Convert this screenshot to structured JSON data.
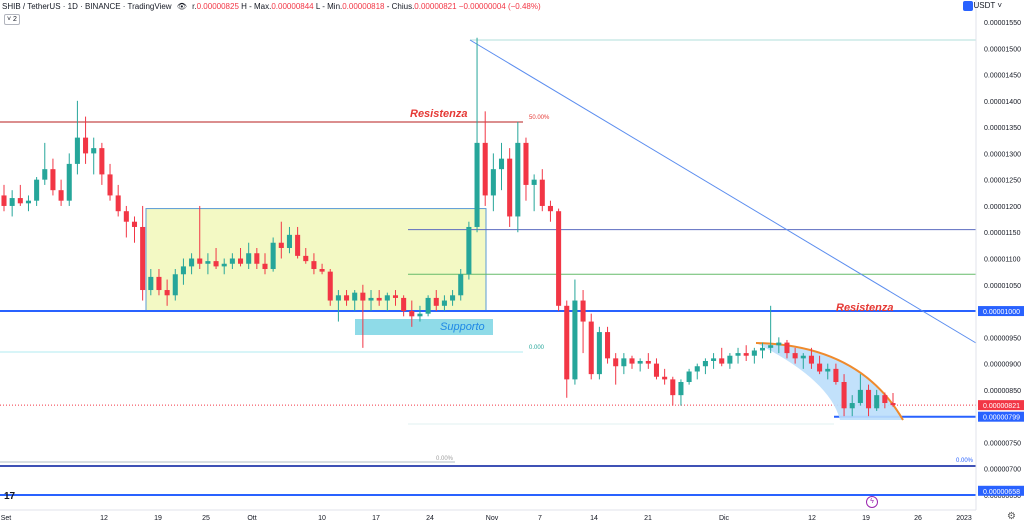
{
  "header": {
    "symbol": "SHIB / TetherUS · 1D · BINANCE · TradingView",
    "ohlc_open_label": "r.",
    "ohlc_open": "0.00000825",
    "ohlc_high_label": "H - Max.",
    "ohlc_high": "0.00000844",
    "ohlc_low_label": "L - Min.",
    "ohlc_low": "0.00000818",
    "ohlc_close_label": "- Chius.",
    "ohlc_close": "0.00000821",
    "ohlc_change": "−0.00000004 (−0.48%)",
    "indicator_count": "2"
  },
  "currency": "USDT",
  "icons": {
    "logo": "tradingview-logo-icon",
    "settings": "gear-icon",
    "flash": "flash-icon",
    "eye": "eye-icon",
    "currency": "currency-icon"
  },
  "chart_data": {
    "type": "candlestick",
    "x_tick_labels": [
      "Set",
      "12",
      "19",
      "25",
      "Ott",
      "10",
      "17",
      "24",
      "Nov",
      "7",
      "14",
      "21",
      "Dic",
      "12",
      "19",
      "26",
      "2023"
    ],
    "y_tick_labels": [
      "0.00001550",
      "0.00001500",
      "0.00001450",
      "0.00001400",
      "0.00001350",
      "0.00001300",
      "0.00001250",
      "0.00001200",
      "0.00001150",
      "0.00001100",
      "0.00001050",
      "0.00001000",
      "0.00000950",
      "0.00000900",
      "0.00000850",
      "0.00000800",
      "0.00000750",
      "0.00000700",
      "0.00000650"
    ],
    "ylim": [
      6.2e-06,
      1.59e-05
    ],
    "price_markers": [
      {
        "value": 8.21e-06,
        "label": "0.00000821",
        "color": "#f23645"
      },
      {
        "value": 7.99e-06,
        "label": "0.00000799",
        "color": "#2962ff"
      },
      {
        "value": 1e-05,
        "label": "0.00001000",
        "color": "#2962ff"
      },
      {
        "value": 6.58e-06,
        "label": "0.00000658",
        "color": "#2962ff"
      }
    ],
    "annotations": [
      {
        "text": "Resistenza",
        "color": "#e53935"
      },
      {
        "text": "Resistenza",
        "color": "#e53935"
      },
      {
        "text": "Supporto",
        "color": "#1e88e5"
      },
      {
        "text": "50.00%",
        "color": "#e53935"
      },
      {
        "text": "0.00%",
        "color": "#9e9e9e"
      },
      {
        "text": "0.00%",
        "color": "#2962ff"
      },
      {
        "text": "0.000",
        "color": "#26a69a"
      }
    ],
    "colors": {
      "up": "#26a69a",
      "down": "#f23645"
    },
    "candles": [
      [
        1.22e-05,
        1.24e-05,
        1.19e-05,
        1.2e-05
      ],
      [
        1.2e-05,
        1.23e-05,
        1.18e-05,
        1.215e-05
      ],
      [
        1.215e-05,
        1.24e-05,
        1.2e-05,
        1.205e-05
      ],
      [
        1.205e-05,
        1.22e-05,
        1.19e-05,
        1.21e-05
      ],
      [
        1.21e-05,
        1.255e-05,
        1.2e-05,
        1.25e-05
      ],
      [
        1.25e-05,
        1.32e-05,
        1.24e-05,
        1.27e-05
      ],
      [
        1.27e-05,
        1.29e-05,
        1.22e-05,
        1.23e-05
      ],
      [
        1.23e-05,
        1.25e-05,
        1.2e-05,
        1.21e-05
      ],
      [
        1.21e-05,
        1.3e-05,
        1.2e-05,
        1.28e-05
      ],
      [
        1.28e-05,
        1.4e-05,
        1.26e-05,
        1.33e-05
      ],
      [
        1.33e-05,
        1.37e-05,
        1.28e-05,
        1.3e-05
      ],
      [
        1.3e-05,
        1.33e-05,
        1.26e-05,
        1.31e-05
      ],
      [
        1.31e-05,
        1.32e-05,
        1.24e-05,
        1.26e-05
      ],
      [
        1.26e-05,
        1.28e-05,
        1.21e-05,
        1.22e-05
      ],
      [
        1.22e-05,
        1.24e-05,
        1.18e-05,
        1.19e-05
      ],
      [
        1.19e-05,
        1.2e-05,
        1.14e-05,
        1.17e-05
      ],
      [
        1.17e-05,
        1.18e-05,
        1.13e-05,
        1.16e-05
      ],
      [
        1.16e-05,
        1.2e-05,
        1.02e-05,
        1.04e-05
      ],
      [
        1.04e-05,
        1.08e-05,
        1.03e-05,
        1.065e-05
      ],
      [
        1.065e-05,
        1.08e-05,
        1.03e-05,
        1.04e-05
      ],
      [
        1.04e-05,
        1.06e-05,
        1.01e-05,
        1.03e-05
      ],
      [
        1.03e-05,
        1.08e-05,
        1.02e-05,
        1.07e-05
      ],
      [
        1.07e-05,
        1.1e-05,
        1.05e-05,
        1.085e-05
      ],
      [
        1.085e-05,
        1.11e-05,
        1.07e-05,
        1.1e-05
      ],
      [
        1.1e-05,
        1.2e-05,
        1.08e-05,
        1.09e-05
      ],
      [
        1.09e-05,
        1.11e-05,
        1.07e-05,
        1.095e-05
      ],
      [
        1.095e-05,
        1.12e-05,
        1.08e-05,
        1.085e-05
      ],
      [
        1.085e-05,
        1.1e-05,
        1.07e-05,
        1.09e-05
      ],
      [
        1.09e-05,
        1.11e-05,
        1.08e-05,
        1.1e-05
      ],
      [
        1.1e-05,
        1.12e-05,
        1.085e-05,
        1.09e-05
      ],
      [
        1.09e-05,
        1.13e-05,
        1.08e-05,
        1.11e-05
      ],
      [
        1.11e-05,
        1.12e-05,
        1.08e-05,
        1.09e-05
      ],
      [
        1.09e-05,
        1.11e-05,
        1.07e-05,
        1.08e-05
      ],
      [
        1.08e-05,
        1.14e-05,
        1.075e-05,
        1.13e-05
      ],
      [
        1.13e-05,
        1.17e-05,
        1.1e-05,
        1.12e-05
      ],
      [
        1.12e-05,
        1.16e-05,
        1.11e-05,
        1.145e-05
      ],
      [
        1.145e-05,
        1.16e-05,
        1.1e-05,
        1.105e-05
      ],
      [
        1.105e-05,
        1.12e-05,
        1.09e-05,
        1.095e-05
      ],
      [
        1.095e-05,
        1.11e-05,
        1.07e-05,
        1.08e-05
      ],
      [
        1.08e-05,
        1.09e-05,
        1.07e-05,
        1.075e-05
      ],
      [
        1.075e-05,
        1.08e-05,
        1.01e-05,
        1.02e-05
      ],
      [
        1.02e-05,
        1.04e-05,
        9.8e-06,
        1.03e-05
      ],
      [
        1.03e-05,
        1.04e-05,
        1.01e-05,
        1.02e-05
      ],
      [
        1.02e-05,
        1.04e-05,
        1e-05,
        1.035e-05
      ],
      [
        1.035e-05,
        1.05e-05,
        9.3e-06,
        1.02e-05
      ],
      [
        1.02e-05,
        1.04e-05,
        1e-05,
        1.025e-05
      ],
      [
        1.025e-05,
        1.04e-05,
        1.01e-05,
        1.02e-05
      ],
      [
        1.02e-05,
        1.035e-05,
        1e-05,
        1.03e-05
      ],
      [
        1.03e-05,
        1.04e-05,
        1.01e-05,
        1.025e-05
      ],
      [
        1.025e-05,
        1.03e-05,
        9.9e-06,
        1e-05
      ],
      [
        1e-05,
        1.02e-05,
        9.7e-06,
        9.9e-06
      ],
      [
        9.9e-06,
        1.01e-05,
        9.8e-06,
        9.95e-06
      ],
      [
        9.95e-06,
        1.03e-05,
        9.9e-06,
        1.025e-05
      ],
      [
        1.025e-05,
        1.04e-05,
        1e-05,
        1.01e-05
      ],
      [
        1.01e-05,
        1.03e-05,
        1e-05,
        1.02e-05
      ],
      [
        1.02e-05,
        1.04e-05,
        1.01e-05,
        1.03e-05
      ],
      [
        1.03e-05,
        1.08e-05,
        1.02e-05,
        1.07e-05
      ],
      [
        1.07e-05,
        1.17e-05,
        1.06e-05,
        1.16e-05
      ],
      [
        1.16e-05,
        1.52e-05,
        1.15e-05,
        1.32e-05
      ],
      [
        1.32e-05,
        1.38e-05,
        1.2e-05,
        1.22e-05
      ],
      [
        1.22e-05,
        1.3e-05,
        1.19e-05,
        1.27e-05
      ],
      [
        1.27e-05,
        1.32e-05,
        1.23e-05,
        1.29e-05
      ],
      [
        1.29e-05,
        1.31e-05,
        1.16e-05,
        1.18e-05
      ],
      [
        1.18e-05,
        1.36e-05,
        1.15e-05,
        1.32e-05
      ],
      [
        1.32e-05,
        1.33e-05,
        1.21e-05,
        1.24e-05
      ],
      [
        1.24e-05,
        1.26e-05,
        1.19e-05,
        1.25e-05
      ],
      [
        1.25e-05,
        1.27e-05,
        1.19e-05,
        1.2e-05
      ],
      [
        1.2e-05,
        1.21e-05,
        1.17e-05,
        1.19e-05
      ],
      [
        1.19e-05,
        1.195e-05,
        1e-05,
        1.01e-05
      ],
      [
        1.01e-05,
        1.02e-05,
        8.35e-06,
        8.7e-06
      ],
      [
        8.7e-06,
        1.06e-05,
        8.6e-06,
        1.02e-05
      ],
      [
        1.02e-05,
        1.04e-05,
        9.2e-06,
        9.8e-06
      ],
      [
        9.8e-06,
        9.95e-06,
        8.7e-06,
        8.8e-06
      ],
      [
        8.8e-06,
        9.7e-06,
        8.7e-06,
        9.6e-06
      ],
      [
        9.6e-06,
        9.7e-06,
        9e-06,
        9.1e-06
      ],
      [
        9.1e-06,
        9.2e-06,
        8.6e-06,
        8.95e-06
      ],
      [
        8.95e-06,
        9.2e-06,
        8.8e-06,
        9.1e-06
      ],
      [
        9.1e-06,
        9.15e-06,
        8.9e-06,
        9e-06
      ],
      [
        9e-06,
        9.1e-06,
        8.85e-06,
        9.05e-06
      ],
      [
        9.05e-06,
        9.2e-06,
        8.9e-06,
        9e-06
      ],
      [
        9e-06,
        9.1e-06,
        8.7e-06,
        8.75e-06
      ],
      [
        8.75e-06,
        8.9e-06,
        8.6e-06,
        8.7e-06
      ],
      [
        8.7e-06,
        8.75e-06,
        8.2e-06,
        8.4e-06
      ],
      [
        8.4e-06,
        8.7e-06,
        8.2e-06,
        8.65e-06
      ],
      [
        8.65e-06,
        8.9e-06,
        8.6e-06,
        8.85e-06
      ],
      [
        8.85e-06,
        9e-06,
        8.7e-06,
        8.95e-06
      ],
      [
        8.95e-06,
        9.1e-06,
        8.8e-06,
        9.05e-06
      ],
      [
        9.05e-06,
        9.2e-06,
        8.9e-06,
        9.1e-06
      ],
      [
        9.1e-06,
        9.3e-06,
        8.95e-06,
        9e-06
      ],
      [
        9e-06,
        9.2e-06,
        8.9e-06,
        9.15e-06
      ],
      [
        9.15e-06,
        9.3e-06,
        9e-06,
        9.2e-06
      ],
      [
        9.2e-06,
        9.35e-06,
        9.05e-06,
        9.15e-06
      ],
      [
        9.15e-06,
        9.3e-06,
        9e-06,
        9.25e-06
      ],
      [
        9.25e-06,
        9.4e-06,
        9.1e-06,
        9.3e-06
      ],
      [
        9.3e-06,
        1.01e-05,
        9.2e-06,
        9.35e-06
      ],
      [
        9.35e-06,
        9.5e-06,
        9.2e-06,
        9.4e-06
      ],
      [
        9.4e-06,
        9.45e-06,
        9.1e-06,
        9.2e-06
      ],
      [
        9.2e-06,
        9.3e-06,
        9e-06,
        9.1e-06
      ],
      [
        9.1e-06,
        9.2e-06,
        8.9e-06,
        9.15e-06
      ],
      [
        9.15e-06,
        9.3e-06,
        8.9e-06,
        9e-06
      ],
      [
        9e-06,
        9.15e-06,
        8.8e-06,
        8.85e-06
      ],
      [
        8.85e-06,
        9e-06,
        8.7e-06,
        8.9e-06
      ],
      [
        8.9e-06,
        9e-06,
        8.6e-06,
        8.65e-06
      ],
      [
        8.65e-06,
        8.8e-06,
        8e-06,
        8.15e-06
      ],
      [
        8.15e-06,
        8.4e-06,
        8e-06,
        8.25e-06
      ],
      [
        8.25e-06,
        8.8e-06,
        8.2e-06,
        8.5e-06
      ],
      [
        8.5e-06,
        8.6e-06,
        8e-06,
        8.15e-06
      ],
      [
        8.15e-06,
        8.5e-06,
        8.1e-06,
        8.4e-06
      ],
      [
        8.4e-06,
        8.45e-06,
        8.15e-06,
        8.25e-06
      ],
      [
        8.25e-06,
        8.44e-06,
        8.18e-06,
        8.21e-06
      ]
    ]
  }
}
